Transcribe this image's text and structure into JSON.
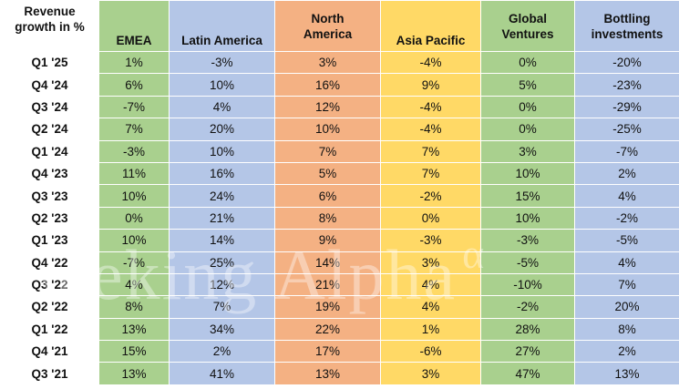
{
  "chart_data": {
    "type": "table",
    "header": {
      "corner_line1": "Revenue",
      "corner_line2": "growth in %",
      "columns": [
        {
          "line1": "",
          "line2": "EMEA"
        },
        {
          "line1": "",
          "line2": "Latin America"
        },
        {
          "line1": "North",
          "line2": "America"
        },
        {
          "line1": "",
          "line2": "Asia Pacific"
        },
        {
          "line1": "Global",
          "line2": "Ventures"
        },
        {
          "line1": "Bottling",
          "line2": "investments"
        }
      ]
    },
    "rows": [
      {
        "label": "Q1 '25",
        "values": [
          "1%",
          "-3%",
          "3%",
          "-4%",
          "0%",
          "-20%"
        ]
      },
      {
        "label": "Q4 '24",
        "values": [
          "6%",
          "10%",
          "16%",
          "9%",
          "5%",
          "-23%"
        ]
      },
      {
        "label": "Q3 '24",
        "values": [
          "-7%",
          "4%",
          "12%",
          "-4%",
          "0%",
          "-29%"
        ]
      },
      {
        "label": "Q2 '24",
        "values": [
          "7%",
          "20%",
          "10%",
          "-4%",
          "0%",
          "-25%"
        ]
      },
      {
        "label": "Q1 '24",
        "values": [
          "-3%",
          "10%",
          "7%",
          "7%",
          "3%",
          "-7%"
        ]
      },
      {
        "label": "Q4 '23",
        "values": [
          "11%",
          "16%",
          "5%",
          "7%",
          "10%",
          "2%"
        ]
      },
      {
        "label": "Q3 '23",
        "values": [
          "10%",
          "24%",
          "6%",
          "-2%",
          "15%",
          "4%"
        ]
      },
      {
        "label": "Q2 '23",
        "values": [
          "0%",
          "21%",
          "8%",
          "0%",
          "10%",
          "-2%"
        ]
      },
      {
        "label": "Q1 '23",
        "values": [
          "10%",
          "14%",
          "9%",
          "-3%",
          "-3%",
          "-5%"
        ]
      },
      {
        "label": "Q4 '22",
        "values": [
          "-7%",
          "25%",
          "14%",
          "3%",
          "-5%",
          "4%"
        ]
      },
      {
        "label": "Q3 '22",
        "values": [
          "4%",
          "12%",
          "21%",
          "4%",
          "-10%",
          "7%"
        ]
      },
      {
        "label": "Q2 '22",
        "values": [
          "8%",
          "7%",
          "19%",
          "4%",
          "-2%",
          "20%"
        ]
      },
      {
        "label": "Q1 '22",
        "values": [
          "13%",
          "34%",
          "22%",
          "1%",
          "28%",
          "8%"
        ]
      },
      {
        "label": "Q4 '21",
        "values": [
          "15%",
          "2%",
          "17%",
          "-6%",
          "27%",
          "2%"
        ]
      },
      {
        "label": "Q3 '21",
        "values": [
          "13%",
          "41%",
          "13%",
          "3%",
          "47%",
          "13%"
        ]
      }
    ],
    "column_colors": [
      "#a9d08e",
      "#b4c6e7",
      "#f4b183",
      "#ffd966",
      "#a9d08e",
      "#b4c6e7"
    ]
  },
  "watermark": {
    "text": "Seeking Alpha",
    "symbol": "α"
  }
}
